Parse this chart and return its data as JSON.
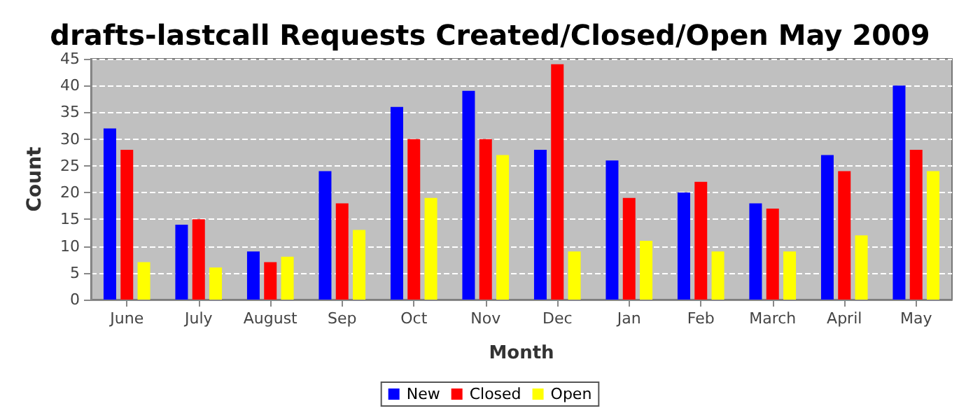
{
  "chart_data": {
    "type": "bar",
    "title": "drafts-lastcall Requests Created/Closed/Open May 2009",
    "xlabel": "Month",
    "ylabel": "Count",
    "categories": [
      "June",
      "July",
      "August",
      "Sep",
      "Oct",
      "Nov",
      "Dec",
      "Jan",
      "Feb",
      "March",
      "April",
      "May"
    ],
    "series": [
      {
        "name": "New",
        "color": "#0000ff",
        "values": [
          32,
          14,
          9,
          24,
          36,
          39,
          28,
          26,
          20,
          18,
          27,
          40
        ]
      },
      {
        "name": "Closed",
        "color": "#ff0000",
        "values": [
          28,
          15,
          7,
          18,
          30,
          30,
          44,
          19,
          22,
          17,
          24,
          28
        ]
      },
      {
        "name": "Open",
        "color": "#ffff00",
        "values": [
          7,
          6,
          8,
          13,
          19,
          27,
          9,
          11,
          9,
          9,
          12,
          24
        ]
      }
    ],
    "ylim": [
      0,
      45
    ],
    "yticks": [
      0,
      5,
      10,
      15,
      20,
      25,
      30,
      35,
      40,
      45
    ],
    "grid": "y",
    "legend": "bottom"
  }
}
